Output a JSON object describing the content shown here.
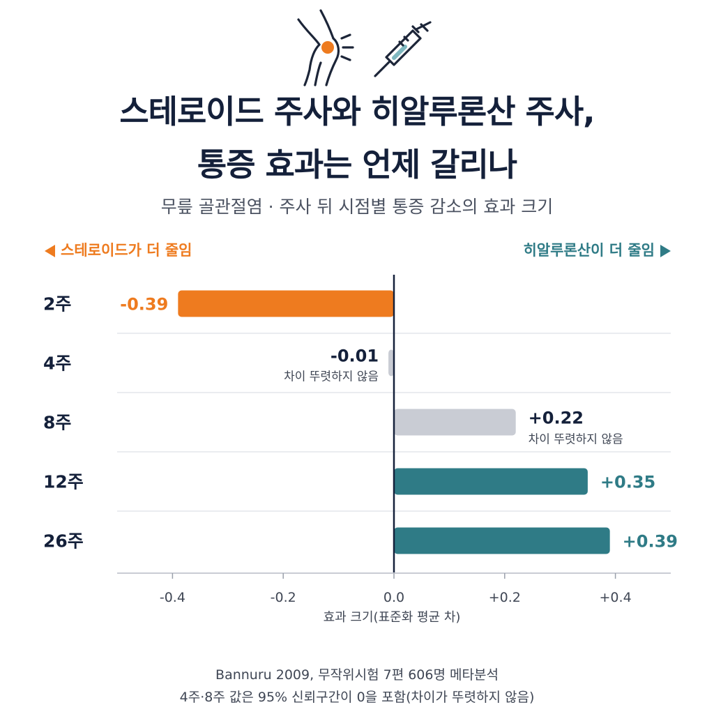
{
  "page": {
    "title_line1": "스테로이드 주사와 히알루론산 주사,",
    "title_line2": "통증 효과는 언제 갈리나",
    "subtitle": "무릎 골관절염 · 주사 뒤 시점별 통증 감소의 효과 크기",
    "left_direction": "스테로이드가 더 줄임",
    "right_direction": "히알루론산이 더 줄임",
    "footnote_line1": "Bannuru 2009, 무작위시험 7편 606명 메타분석",
    "footnote_line2": "4주·8주 값은 95% 신뢰구간이 0을 포함(차이가 뚜렷하지 않음)",
    "icons": [
      "knee-pain-icon",
      "syringe-icon"
    ]
  },
  "colors": {
    "steroid": "#ee7b1f",
    "hyaluronic": "#2f7b86",
    "not_significant": "#c9ccd4",
    "text_dark": "#14203a",
    "text_gray": "#3f4654"
  },
  "chart_data": {
    "type": "bar",
    "orientation": "horizontal",
    "categories": [
      "2주",
      "4주",
      "8주",
      "12주",
      "26주"
    ],
    "values": [
      -0.39,
      -0.01,
      0.22,
      0.35,
      0.39
    ],
    "value_labels": [
      "-0.39",
      "-0.01",
      "+0.22",
      "+0.35",
      "+0.39"
    ],
    "notes": [
      "",
      "차이 뚜렷하지 않음",
      "차이 뚜렷하지 않음",
      "",
      ""
    ],
    "significant": [
      true,
      false,
      false,
      true,
      true
    ],
    "xlabel": "효과 크기(표준화 평균 차)",
    "xlim": [
      -0.5,
      0.5
    ],
    "xticks": [
      -0.4,
      -0.2,
      0.0,
      0.2,
      0.4
    ],
    "xtick_labels": [
      "-0.4",
      "-0.2",
      "0.0",
      "+0.2",
      "+0.4"
    ],
    "grid": "horizontal row separators"
  }
}
